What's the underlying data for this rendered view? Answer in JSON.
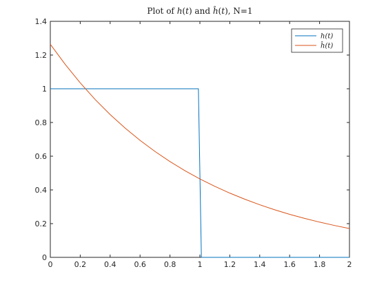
{
  "chart_data": {
    "type": "line",
    "title": "Plot of h(t) and ĥ(t), N=1",
    "xlabel": "",
    "ylabel": "",
    "xlim": [
      0,
      2
    ],
    "ylim": [
      0,
      1.4
    ],
    "xticks": [
      0,
      0.2,
      0.4,
      0.6,
      0.8,
      1,
      1.2,
      1.4,
      1.6,
      1.8,
      2
    ],
    "xtick_labels": [
      "0",
      "0.2",
      "0.4",
      "0.6",
      "0.8",
      "1",
      "1.2",
      "1.4",
      "1.6",
      "1.8",
      "2"
    ],
    "yticks": [
      0,
      0.2,
      0.4,
      0.6,
      0.8,
      1,
      1.2,
      1.4
    ],
    "ytick_labels": [
      "0",
      "0.2",
      "0.4",
      "0.6",
      "0.8",
      "1",
      "1.2",
      "1.4"
    ],
    "grid": false,
    "legend_position": "top-right",
    "series": [
      {
        "name": "h(t)",
        "color": "#0072BD",
        "x": [
          0,
          0.99,
          1.01,
          2
        ],
        "y": [
          1,
          1,
          0,
          0
        ]
      },
      {
        "name": "ĥ(t)",
        "color": "#D95319",
        "x": [
          0,
          0.1,
          0.2,
          0.3,
          0.4,
          0.5,
          0.6,
          0.7,
          0.8,
          0.9,
          1.0,
          1.1,
          1.2,
          1.3,
          1.4,
          1.5,
          1.6,
          1.7,
          1.8,
          1.9,
          2.0
        ],
        "y": [
          1.264,
          1.144,
          1.035,
          0.936,
          0.847,
          0.767,
          0.694,
          0.628,
          0.568,
          0.514,
          0.465,
          0.421,
          0.381,
          0.345,
          0.312,
          0.282,
          0.255,
          0.231,
          0.209,
          0.189,
          0.171
        ]
      }
    ]
  }
}
